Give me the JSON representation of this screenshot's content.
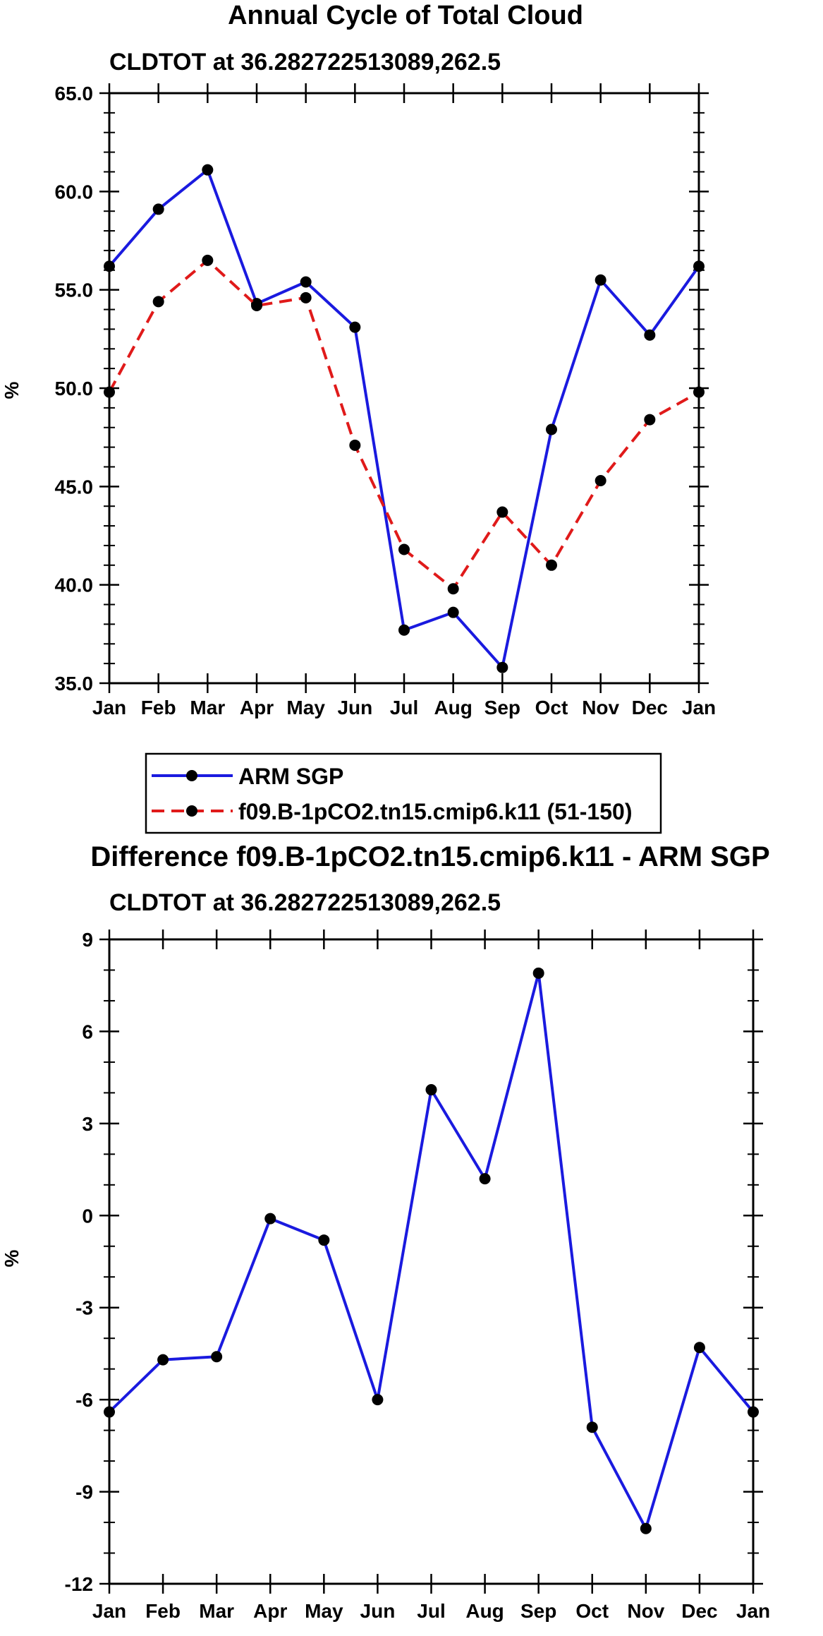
{
  "chart_data": [
    {
      "type": "line",
      "title": "Annual Cycle of Total Cloud",
      "subtitle": "CLDTOT at 36.282722513089,262.5",
      "xlabel": "",
      "ylabel": "%",
      "categories": [
        "Jan",
        "Feb",
        "Mar",
        "Apr",
        "May",
        "Jun",
        "Jul",
        "Aug",
        "Sep",
        "Oct",
        "Nov",
        "Dec",
        "Jan"
      ],
      "ylim": [
        35.0,
        65.0
      ],
      "yticks": [
        "35.0",
        "40.0",
        "45.0",
        "50.0",
        "55.0",
        "60.0",
        "65.0"
      ],
      "grid": false,
      "legend_position": "bottom",
      "series": [
        {
          "name": "ARM SGP",
          "color": "#1a1adf",
          "dash": "solid",
          "values": [
            56.2,
            59.1,
            61.1,
            54.3,
            55.4,
            53.1,
            37.7,
            38.6,
            35.8,
            47.9,
            55.5,
            52.7,
            56.2
          ]
        },
        {
          "name": "f09.B-1pCO2.tn15.cmip6.k11 (51-150)",
          "color": "#e01a1a",
          "dash": "dashed",
          "values": [
            49.8,
            54.4,
            56.5,
            54.2,
            54.6,
            47.1,
            41.8,
            39.8,
            43.7,
            41.0,
            45.3,
            48.4,
            49.8
          ]
        }
      ]
    },
    {
      "type": "line",
      "title": "Difference f09.B-1pCO2.tn15.cmip6.k11 - ARM SGP",
      "subtitle": "CLDTOT at 36.282722513089,262.5",
      "xlabel": "",
      "ylabel": "%",
      "categories": [
        "Jan",
        "Feb",
        "Mar",
        "Apr",
        "May",
        "Jun",
        "Jul",
        "Aug",
        "Sep",
        "Oct",
        "Nov",
        "Dec",
        "Jan"
      ],
      "ylim": [
        -12,
        9
      ],
      "yticks": [
        "-12",
        "-9",
        "-6",
        "-3",
        "0",
        "3",
        "6",
        "9"
      ],
      "grid": false,
      "series": [
        {
          "name": "Difference",
          "color": "#1a1adf",
          "dash": "solid",
          "values": [
            -6.4,
            -4.7,
            -4.6,
            -0.1,
            -0.8,
            -6.0,
            4.1,
            1.2,
            7.9,
            -6.9,
            -10.2,
            -4.3,
            -6.4
          ]
        }
      ]
    }
  ]
}
